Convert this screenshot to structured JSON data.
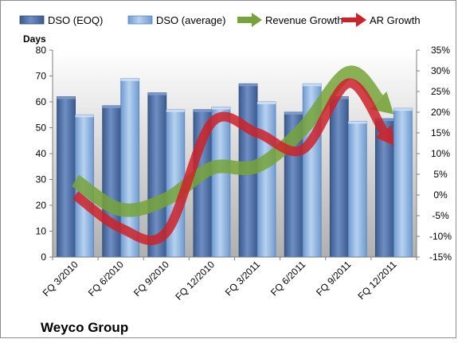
{
  "chart_data": {
    "type": "bar",
    "title": "Weyco Group",
    "ylabel": "Days",
    "ylim": [
      0,
      80
    ],
    "y2lim": [
      -15,
      35
    ],
    "y_ticks": [
      "0",
      "10",
      "20",
      "30",
      "40",
      "50",
      "60",
      "70",
      "80"
    ],
    "y2_ticks": [
      "-15%",
      "-10%",
      "-5%",
      "0%",
      "5%",
      "10%",
      "15%",
      "20%",
      "25%",
      "30%",
      "35%"
    ],
    "grid": false,
    "legend_position": "top",
    "categories": [
      "FQ 3/2010",
      "FQ 6/2010",
      "FQ 9/2010",
      "FQ 12/2010",
      "FQ 3/2011",
      "FQ 6/2011",
      "FQ 9/2011",
      "FQ 12/2011"
    ],
    "series": [
      {
        "name": "DSO (EOQ)",
        "type": "bar",
        "axis": "left",
        "color": "#4e6fa3",
        "values": [
          62,
          58.5,
          63.5,
          57,
          67,
          56,
          62,
          53.5
        ]
      },
      {
        "name": "DSO (average)",
        "type": "bar",
        "axis": "left",
        "color": "#8db3e2",
        "values": [
          55,
          69,
          57,
          58,
          60,
          67,
          52.5,
          57.5
        ]
      },
      {
        "name": "Revenue Growth",
        "type": "line",
        "axis": "right",
        "color": "#77a33a",
        "values": [
          3.5,
          -3.5,
          -1,
          6.5,
          7,
          16,
          29.5,
          19.5
        ]
      },
      {
        "name": "AR Growth",
        "type": "line",
        "axis": "right",
        "color": "#cc2229",
        "values": [
          0,
          -8,
          -9,
          17.5,
          15,
          11,
          27,
          12
        ]
      }
    ]
  }
}
